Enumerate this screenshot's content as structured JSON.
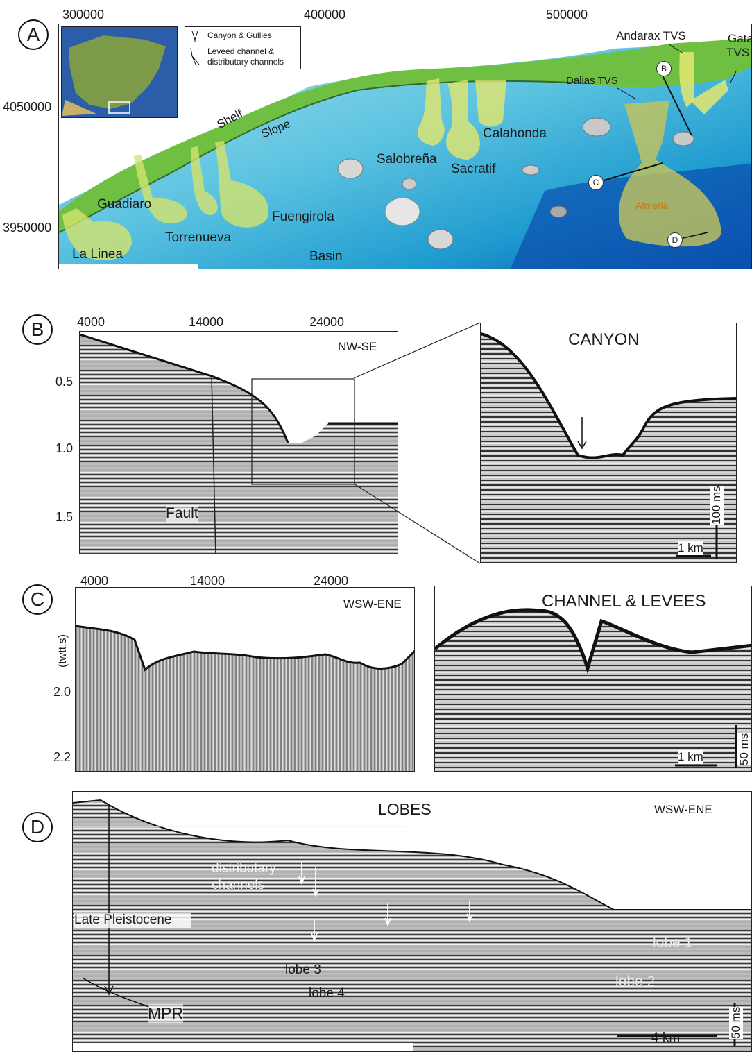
{
  "panel_a": {
    "letter": "A",
    "x_ticks": [
      "300000",
      "400000",
      "500000"
    ],
    "y_ticks": [
      "4050000",
      "3950000"
    ],
    "legend": {
      "item1": "Canyon & Gullies",
      "item2_line1": "Leveed channel &",
      "item2_line2": "distributary channels"
    },
    "labels": {
      "shelf": "Shelf",
      "slope": "Slope",
      "basin": "Basin",
      "guadiaro": "Guadiaro",
      "la_linea": "La Linea",
      "torrenueva": "Torrenueva",
      "fuengirola": "Fuengirola",
      "salobrena": "Salobreña",
      "sacratif": "Sacratif",
      "calahonda": "Calahonda",
      "dalias": "Dalias TVS",
      "andarax": "Andarax TVS",
      "gata1": "Gata",
      "gata2": "TVS",
      "almeria": "Almeria"
    },
    "markers": [
      "B",
      "C",
      "D"
    ]
  },
  "panel_b": {
    "letter": "B",
    "x_ticks": [
      "4000",
      "14000",
      "24000"
    ],
    "y_ticks": [
      "0.5",
      "1.0",
      "1.5"
    ],
    "orientation": "NW-SE",
    "fault": "Fault",
    "inset_title": "CANYON",
    "scale_h": "1 km",
    "scale_v": "100 ms"
  },
  "panel_c": {
    "letter": "C",
    "x_ticks": [
      "4000",
      "14000",
      "24000"
    ],
    "y_axis_label": "(twtt,s)",
    "y_ticks": [
      "2.0",
      "2.2"
    ],
    "orientation": "WSW-ENE",
    "inset_title": "CHANNEL & LEVEES",
    "scale_h": "1 km",
    "scale_v": "50 ms"
  },
  "panel_d": {
    "letter": "D",
    "title": "LOBES",
    "orientation": "WSW-ENE",
    "distributary1": "distributary",
    "distributary2": "channels",
    "late": "Late Pleistocene",
    "lobe1": "lobe  1",
    "lobe2": "lobe 2",
    "lobe3": "lobe 3",
    "lobe4": "lobe 4",
    "mpr": "MPR",
    "scale_h": "4 km",
    "scale_v": "50 ms"
  }
}
